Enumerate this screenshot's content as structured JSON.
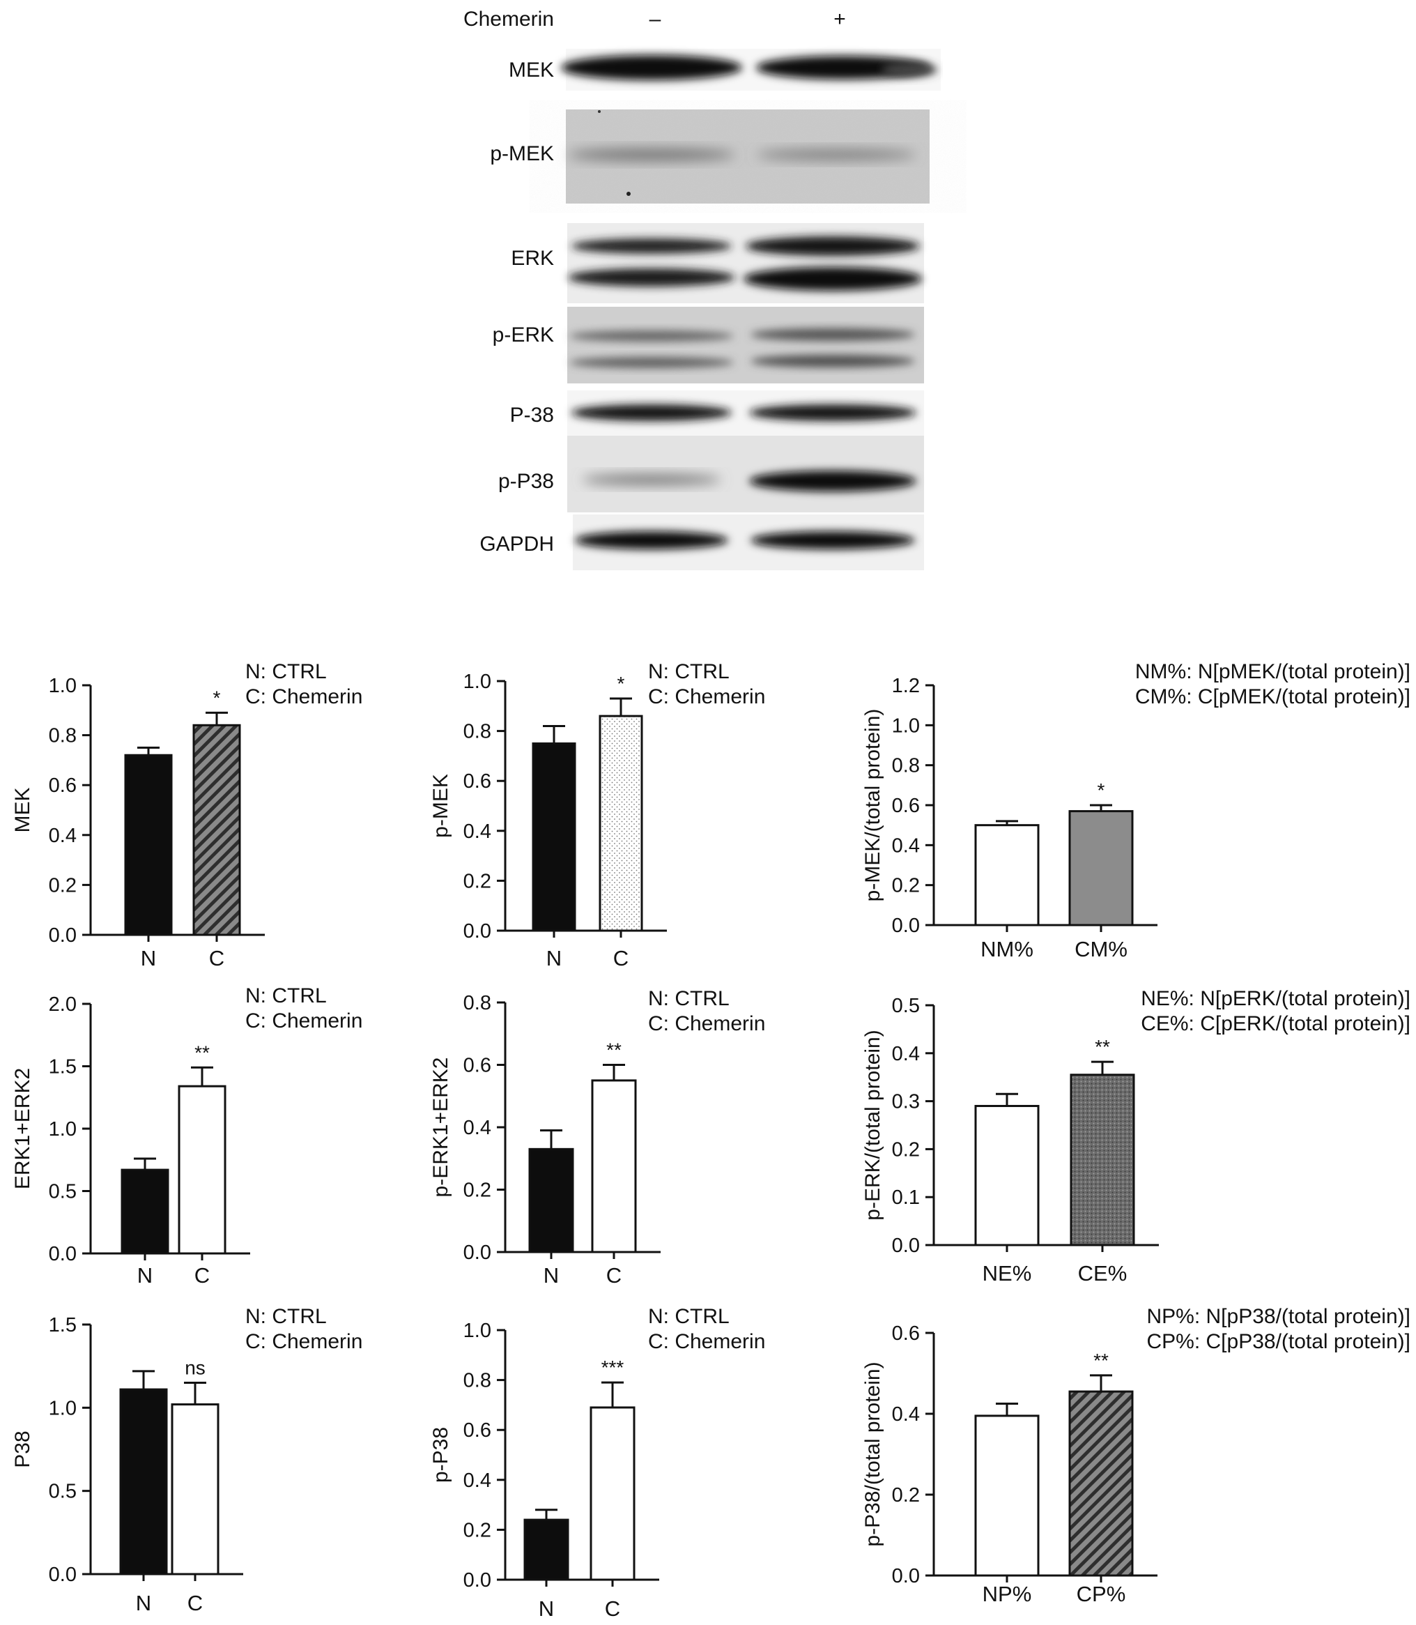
{
  "blot": {
    "treatment_label": "Chemerin",
    "lane_labels": [
      "–",
      "+"
    ],
    "rows": [
      {
        "label": "MEK"
      },
      {
        "label": "p-MEK"
      },
      {
        "label": "ERK"
      },
      {
        "label": "p-ERK"
      },
      {
        "label": "P-38"
      },
      {
        "label": "p-P38"
      },
      {
        "label": "GAPDH"
      }
    ]
  },
  "chart_data": [
    {
      "type": "bar",
      "ylabel": "MEK",
      "categories": [
        "N",
        "C"
      ],
      "values": [
        0.72,
        0.84
      ],
      "errors": [
        0.03,
        0.05
      ],
      "significance": [
        "",
        "*"
      ],
      "ylim": [
        0,
        1.0
      ],
      "yticks": [
        "0.0",
        "0.2",
        "0.4",
        "0.6",
        "0.8",
        "1.0"
      ],
      "legend": [
        "N: CTRL",
        "C: Chemerin"
      ],
      "fills": [
        "solid",
        "diagonal"
      ]
    },
    {
      "type": "bar",
      "ylabel": "p-MEK",
      "categories": [
        "N",
        "C"
      ],
      "values": [
        0.75,
        0.86
      ],
      "errors": [
        0.07,
        0.07
      ],
      "significance": [
        "",
        "*"
      ],
      "ylim": [
        0,
        1.0
      ],
      "yticks": [
        "0.0",
        "0.2",
        "0.4",
        "0.6",
        "0.8",
        "1.0"
      ],
      "legend": [
        "N: CTRL",
        "C: Chemerin"
      ],
      "fills": [
        "solid",
        "dots"
      ]
    },
    {
      "type": "bar",
      "ylabel": "p-MEK/(total protein)",
      "categories": [
        "NM%",
        "CM%"
      ],
      "values": [
        0.5,
        0.57
      ],
      "errors": [
        0.02,
        0.03
      ],
      "significance": [
        "",
        "*"
      ],
      "ylim": [
        0,
        1.2
      ],
      "yticks": [
        "0.0",
        "0.2",
        "0.4",
        "0.6",
        "0.8",
        "1.0",
        "1.2"
      ],
      "legend": [
        "NM%: N[pMEK/(total protein)]",
        "CM%: C[pMEK/(total protein)]"
      ],
      "fills": [
        "white",
        "gray"
      ]
    },
    {
      "type": "bar",
      "ylabel": "ERK1+ERK2",
      "categories": [
        "N",
        "C"
      ],
      "values": [
        0.67,
        1.34
      ],
      "errors": [
        0.09,
        0.15
      ],
      "significance": [
        "",
        "**"
      ],
      "ylim": [
        0,
        2.0
      ],
      "yticks": [
        "0.0",
        "0.5",
        "1.0",
        "1.5",
        "2.0"
      ],
      "legend": [
        "N: CTRL",
        "C: Chemerin"
      ],
      "fills": [
        "solid",
        "white"
      ]
    },
    {
      "type": "bar",
      "ylabel": "p-ERK1+ERK2",
      "categories": [
        "N",
        "C"
      ],
      "values": [
        0.33,
        0.55
      ],
      "errors": [
        0.06,
        0.05
      ],
      "significance": [
        "",
        "**"
      ],
      "ylim": [
        0,
        0.8
      ],
      "yticks": [
        "0.0",
        "0.2",
        "0.4",
        "0.6",
        "0.8"
      ],
      "legend": [
        "N: CTRL",
        "C: Chemerin"
      ],
      "fills": [
        "solid",
        "white"
      ]
    },
    {
      "type": "bar",
      "ylabel": "p-ERK/(total protein)",
      "categories": [
        "NE%",
        "CE%"
      ],
      "values": [
        0.29,
        0.355
      ],
      "errors": [
        0.025,
        0.027
      ],
      "significance": [
        "",
        "**"
      ],
      "ylim": [
        0,
        0.5
      ],
      "yticks": [
        "0.0",
        "0.1",
        "0.2",
        "0.3",
        "0.4",
        "0.5"
      ],
      "legend": [
        "NE%: N[pERK/(total protein)]",
        "CE%: C[pERK/(total protein)]"
      ],
      "fills": [
        "white",
        "darkdots"
      ]
    },
    {
      "type": "bar",
      "ylabel": "P38",
      "categories": [
        "N",
        "C"
      ],
      "values": [
        1.11,
        1.02
      ],
      "errors": [
        0.11,
        0.13
      ],
      "significance": [
        "",
        "ns"
      ],
      "ylim": [
        0,
        1.5
      ],
      "yticks": [
        "0.0",
        "0.5",
        "1.0",
        "1.5"
      ],
      "legend": [
        "N: CTRL",
        "C: Chemerin"
      ],
      "fills": [
        "solid",
        "white"
      ]
    },
    {
      "type": "bar",
      "ylabel": "p-P38",
      "categories": [
        "N",
        "C"
      ],
      "values": [
        0.24,
        0.69
      ],
      "errors": [
        0.04,
        0.1
      ],
      "significance": [
        "",
        "***"
      ],
      "ylim": [
        0,
        1.0
      ],
      "yticks": [
        "0.0",
        "0.2",
        "0.4",
        "0.6",
        "0.8",
        "1.0"
      ],
      "legend": [
        "N: CTRL",
        "C: Chemerin"
      ],
      "fills": [
        "solid",
        "white"
      ]
    },
    {
      "type": "bar",
      "ylabel": "p-P38/(total protein)",
      "categories": [
        "NP%",
        "CP%"
      ],
      "values": [
        0.395,
        0.455
      ],
      "errors": [
        0.03,
        0.04
      ],
      "significance": [
        "",
        "**"
      ],
      "ylim": [
        0,
        0.6
      ],
      "yticks": [
        "0.0",
        "0.2",
        "0.4",
        "0.6"
      ],
      "legend": [
        "NP%: N[pP38/(total protein)]",
        "CP%: C[pP38/(total protein)]"
      ],
      "fills": [
        "white",
        "diagonal"
      ]
    }
  ]
}
